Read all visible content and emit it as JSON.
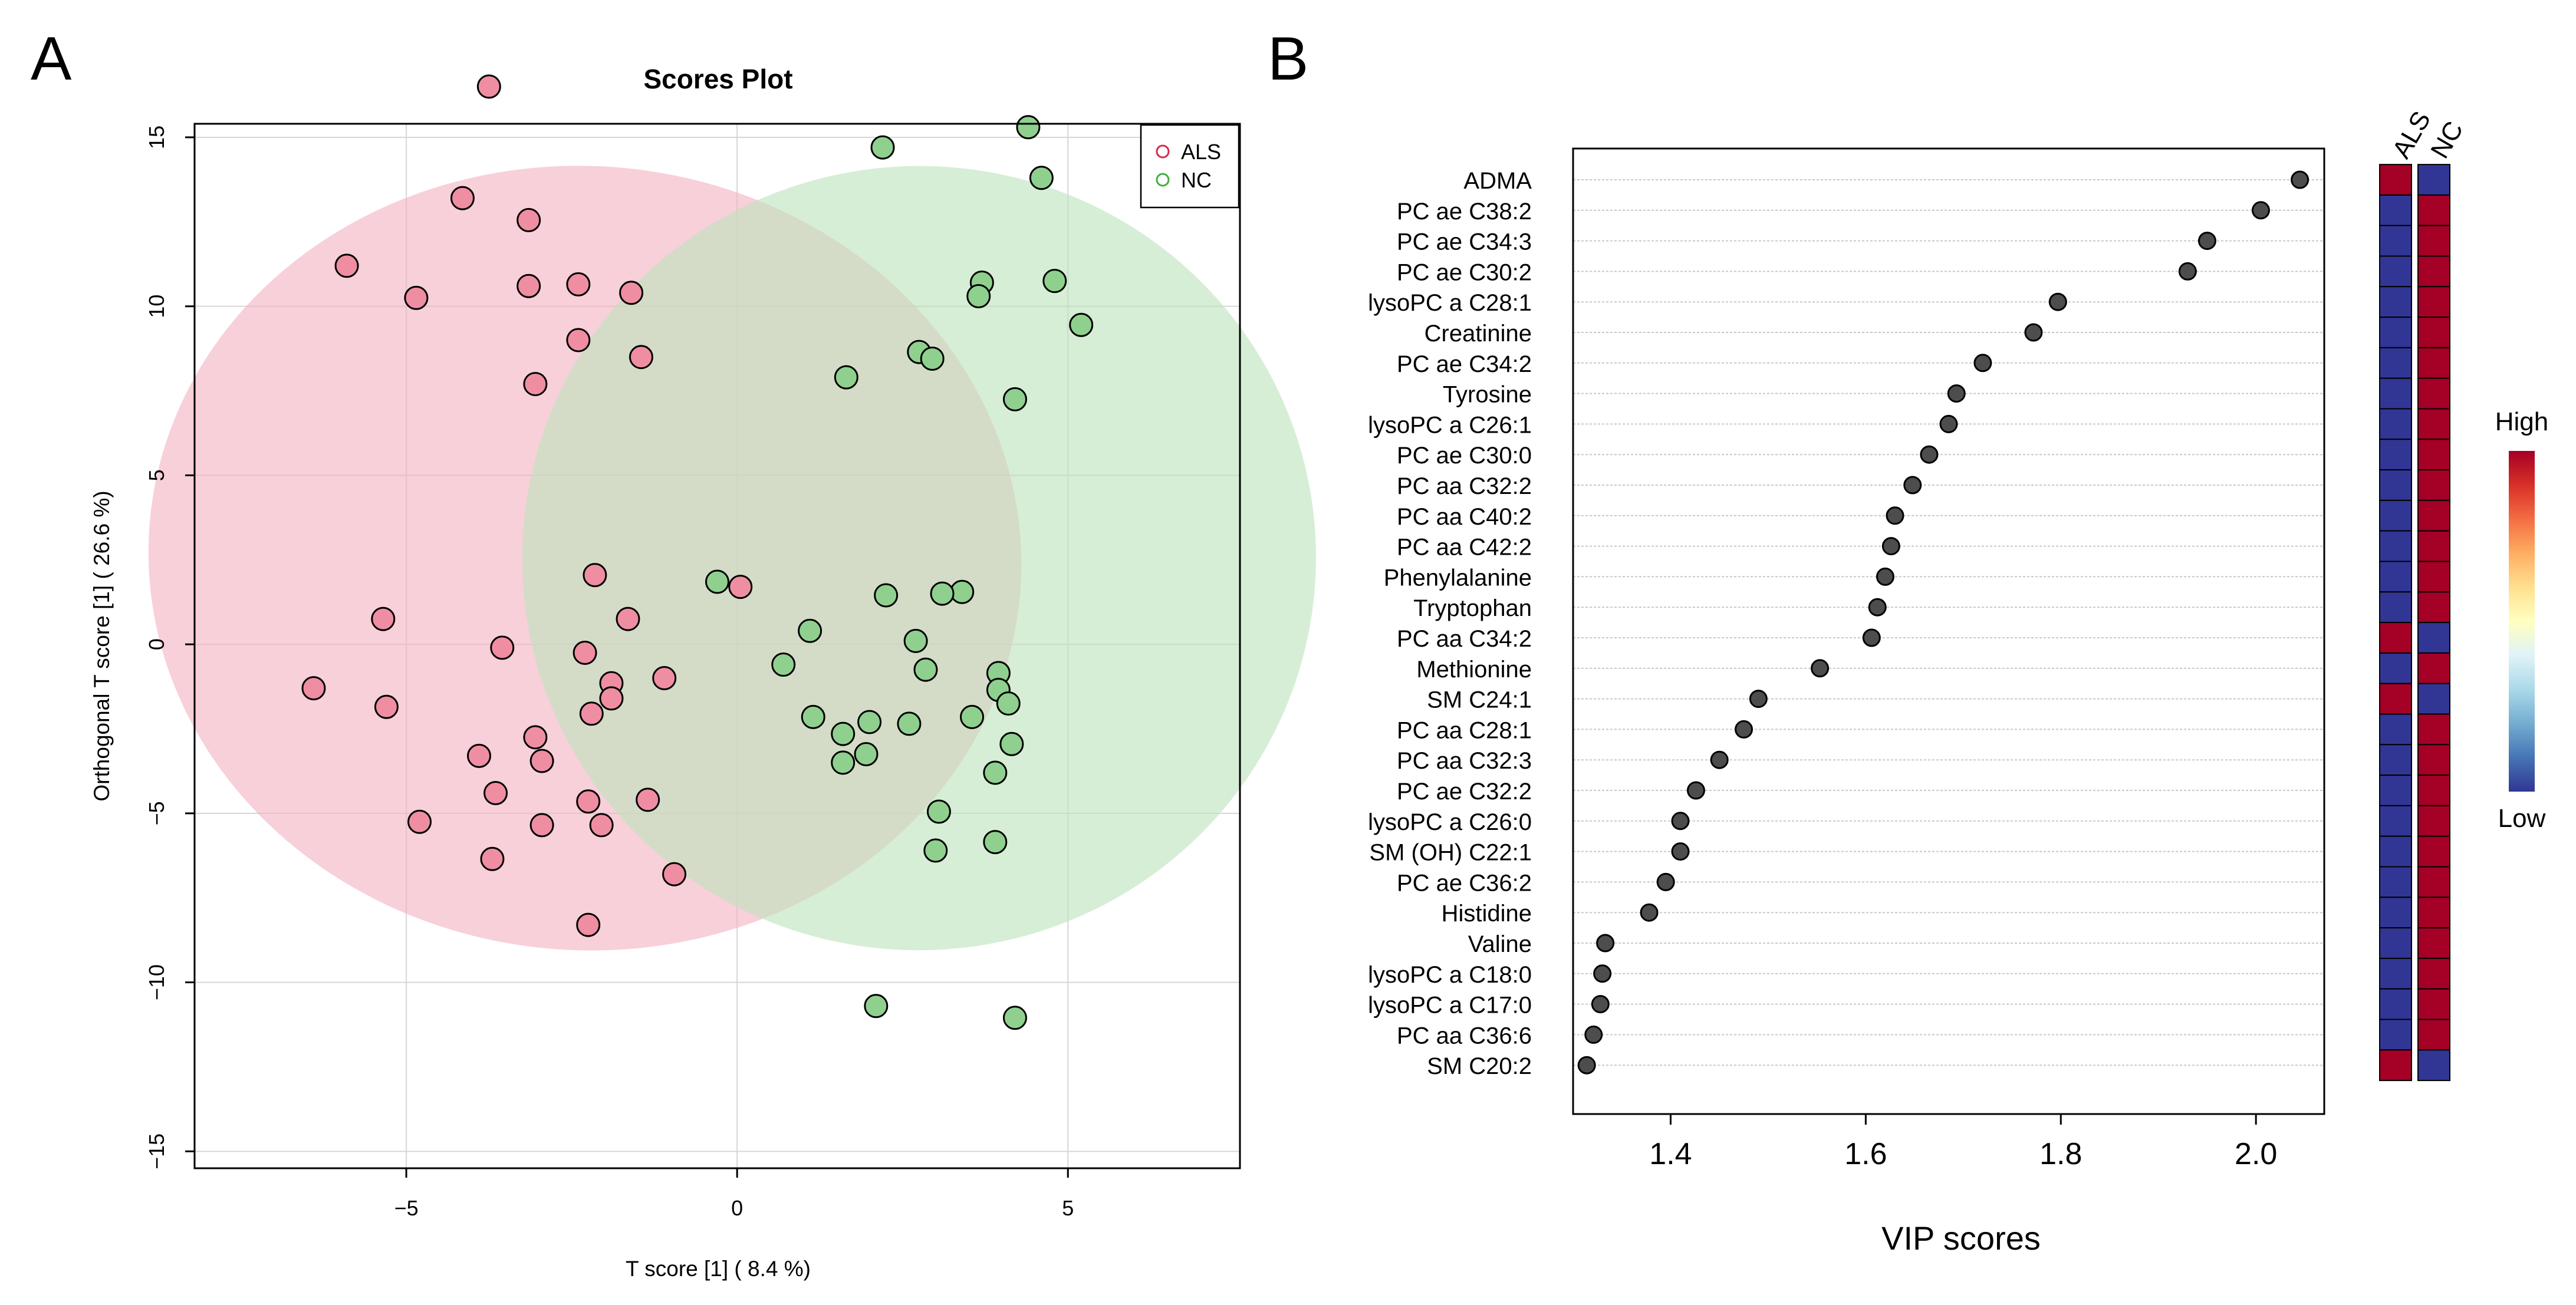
{
  "panels": {
    "a_letter": "A",
    "b_letter": "B"
  },
  "chart_data": [
    {
      "type": "scatter",
      "title": "Scores Plot",
      "xlabel": "T score [1] ( 8.4 %)",
      "ylabel": "Orthogonal T score [1] ( 26.6 %)",
      "xlim": [
        -8.2,
        7.6
      ],
      "ylim": [
        -15.5,
        15.4
      ],
      "xticks": [
        -5,
        0,
        5
      ],
      "xtick_labels": [
        "−5",
        "0",
        "5"
      ],
      "yticks": [
        -15,
        -10,
        -5,
        0,
        5,
        10,
        15
      ],
      "ytick_labels": [
        "−15",
        "−10",
        "−5",
        "0",
        "5",
        "10",
        "15"
      ],
      "grid": true,
      "legend_position": "top-right",
      "colors": {
        "ALS": "#ef8ea2",
        "NC": "#8fd08f",
        "ALS_legend": "#d6294b",
        "NC_legend": "#3fb13f",
        "ALS_ellipse": "#f4b3c2",
        "NC_ellipse": "#bfe3bd"
      },
      "ellipses": [
        {
          "name": "ALS",
          "center": [
            -2.3,
            2.55
          ],
          "semi_axes": [
            6.6,
            11.6
          ],
          "angle_deg": 4
        },
        {
          "name": "NC",
          "center": [
            2.75,
            2.55
          ],
          "semi_axes": [
            6.0,
            11.6
          ],
          "angle_deg": -4
        }
      ],
      "series": [
        {
          "name": "ALS",
          "points": [
            [
              -3.75,
              16.5
            ],
            [
              -4.15,
              13.2
            ],
            [
              -3.15,
              12.55
            ],
            [
              -5.9,
              11.2
            ],
            [
              -3.15,
              10.6
            ],
            [
              -2.4,
              10.65
            ],
            [
              -1.6,
              10.4
            ],
            [
              -4.85,
              10.25
            ],
            [
              -2.4,
              9.0
            ],
            [
              -1.45,
              8.5
            ],
            [
              -3.05,
              7.7
            ],
            [
              -2.15,
              2.05
            ],
            [
              0.05,
              1.7
            ],
            [
              -5.35,
              0.75
            ],
            [
              -1.65,
              0.75
            ],
            [
              -3.55,
              -0.1
            ],
            [
              -2.3,
              -0.25
            ],
            [
              -1.1,
              -1.0
            ],
            [
              -1.9,
              -1.15
            ],
            [
              -6.4,
              -1.3
            ],
            [
              -1.9,
              -1.6
            ],
            [
              -5.3,
              -1.85
            ],
            [
              -2.2,
              -2.05
            ],
            [
              -3.05,
              -2.75
            ],
            [
              -3.9,
              -3.3
            ],
            [
              -2.95,
              -3.45
            ],
            [
              -3.65,
              -4.4
            ],
            [
              -1.35,
              -4.6
            ],
            [
              -2.25,
              -4.65
            ],
            [
              -4.8,
              -5.25
            ],
            [
              -2.95,
              -5.35
            ],
            [
              -2.05,
              -5.35
            ],
            [
              -3.7,
              -6.35
            ],
            [
              -0.95,
              -6.8
            ],
            [
              -2.25,
              -8.3
            ]
          ]
        },
        {
          "name": "NC",
          "points": [
            [
              4.4,
              15.3
            ],
            [
              2.2,
              14.7
            ],
            [
              4.6,
              13.8
            ],
            [
              3.7,
              10.7
            ],
            [
              4.8,
              10.75
            ],
            [
              3.65,
              10.3
            ],
            [
              5.2,
              9.45
            ],
            [
              2.75,
              8.65
            ],
            [
              2.95,
              8.45
            ],
            [
              1.65,
              7.9
            ],
            [
              4.2,
              7.25
            ],
            [
              -0.3,
              1.85
            ],
            [
              3.4,
              1.55
            ],
            [
              3.1,
              1.5
            ],
            [
              2.25,
              1.45
            ],
            [
              1.1,
              0.4
            ],
            [
              2.7,
              0.1
            ],
            [
              0.7,
              -0.6
            ],
            [
              2.85,
              -0.75
            ],
            [
              3.95,
              -0.85
            ],
            [
              3.95,
              -1.35
            ],
            [
              4.1,
              -1.75
            ],
            [
              1.15,
              -2.15
            ],
            [
              3.55,
              -2.15
            ],
            [
              2.0,
              -2.3
            ],
            [
              2.6,
              -2.35
            ],
            [
              1.6,
              -2.65
            ],
            [
              4.15,
              -2.95
            ],
            [
              1.95,
              -3.25
            ],
            [
              1.6,
              -3.5
            ],
            [
              3.9,
              -3.8
            ],
            [
              3.05,
              -4.95
            ],
            [
              3.9,
              -5.85
            ],
            [
              3.0,
              -6.1
            ],
            [
              2.1,
              -10.7
            ],
            [
              4.2,
              -11.05
            ]
          ]
        }
      ]
    },
    {
      "type": "scatter",
      "title": "",
      "xlabel": "VIP scores",
      "ylabel": "",
      "xlim": [
        1.3,
        2.07
      ],
      "xticks": [
        1.4,
        1.6,
        1.8,
        2.0
      ],
      "xtick_labels": [
        "1.4",
        "1.6",
        "1.8",
        "2.0"
      ],
      "grid": true,
      "categories": [
        "ADMA",
        "PC ae C38:2",
        "PC ae C34:3",
        "PC ae C30:2",
        "lysoPC a C28:1",
        "Creatinine",
        "PC ae C34:2",
        "Tyrosine",
        "lysoPC a C26:1",
        "PC ae C30:0",
        "PC aa C32:2",
        "PC aa C40:2",
        "PC aa C42:2",
        "Phenylalanine",
        "Tryptophan",
        "PC aa C34:2",
        "Methionine",
        "SM C24:1",
        "PC aa C28:1",
        "PC aa C32:3",
        "PC ae C32:2",
        "lysoPC a C26:0",
        "SM (OH) C22:1",
        "PC ae C36:2",
        "Histidine",
        "Valine",
        "lysoPC a C18:0",
        "lysoPC a C17:0",
        "PC aa C36:6",
        "SM C20:2"
      ],
      "values": [
        2.045,
        2.005,
        1.95,
        1.93,
        1.797,
        1.772,
        1.72,
        1.693,
        1.685,
        1.665,
        1.648,
        1.63,
        1.626,
        1.62,
        1.612,
        1.606,
        1.553,
        1.49,
        1.475,
        1.45,
        1.426,
        1.41,
        1.41,
        1.395,
        1.378,
        1.333,
        1.33,
        1.328,
        1.321,
        1.314
      ],
      "point_color": "#4d4d4d",
      "heatmap": {
        "columns": [
          "ALS",
          "NC"
        ],
        "colors": {
          "high": "#a50026",
          "low": "#313695"
        },
        "rows": [
          [
            "high",
            "low"
          ],
          [
            "low",
            "high"
          ],
          [
            "low",
            "high"
          ],
          [
            "low",
            "high"
          ],
          [
            "low",
            "high"
          ],
          [
            "low",
            "high"
          ],
          [
            "low",
            "high"
          ],
          [
            "low",
            "high"
          ],
          [
            "low",
            "high"
          ],
          [
            "low",
            "high"
          ],
          [
            "low",
            "high"
          ],
          [
            "low",
            "high"
          ],
          [
            "low",
            "high"
          ],
          [
            "low",
            "high"
          ],
          [
            "low",
            "high"
          ],
          [
            "high",
            "low"
          ],
          [
            "low",
            "high"
          ],
          [
            "high",
            "low"
          ],
          [
            "low",
            "high"
          ],
          [
            "low",
            "high"
          ],
          [
            "low",
            "high"
          ],
          [
            "low",
            "high"
          ],
          [
            "low",
            "high"
          ],
          [
            "low",
            "high"
          ],
          [
            "low",
            "high"
          ],
          [
            "low",
            "high"
          ],
          [
            "low",
            "high"
          ],
          [
            "low",
            "high"
          ],
          [
            "low",
            "high"
          ],
          [
            "high",
            "low"
          ]
        ]
      },
      "colorbar": {
        "high_label": "High",
        "low_label": "Low",
        "stops": [
          "#313695",
          "#4575b4",
          "#74add1",
          "#abd9e9",
          "#e0f3f8",
          "#ffffbf",
          "#fee090",
          "#fdae61",
          "#f46d43",
          "#d73027",
          "#a50026"
        ]
      }
    }
  ]
}
